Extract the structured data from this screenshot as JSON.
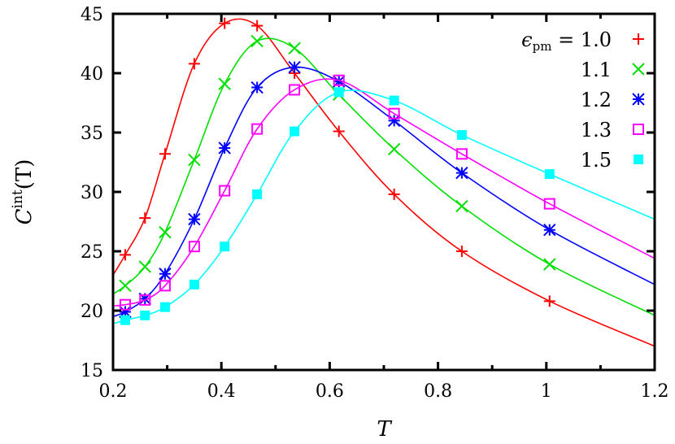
{
  "chart_data": {
    "type": "line",
    "xlabel": "T",
    "ylabel_main": "C",
    "ylabel_sup": "int",
    "ylabel_arg": "(T)",
    "xlim": [
      0.2,
      1.2
    ],
    "ylim": [
      15,
      45
    ],
    "xticks": [
      "0.2",
      "0.4",
      "0.6",
      "0.8",
      "1",
      "1.2"
    ],
    "yticks": [
      "15",
      "20",
      "25",
      "30",
      "35",
      "40",
      "45"
    ],
    "grid": false,
    "legend_position": "top-right",
    "legend_prefix": "ϵ",
    "legend_prefix_sub": "pm",
    "legend_prefix_eq": " = ",
    "x": [
      0.2225,
      0.259,
      0.296,
      0.35,
      0.406,
      0.466,
      0.535,
      0.617,
      0.719,
      0.844,
      1.006
    ],
    "series": [
      {
        "name": "1.0",
        "color": "#ff0000",
        "marker": "plus",
        "values": [
          24.7,
          27.8,
          33.2,
          40.8,
          44.2,
          44.0,
          40.0,
          35.1,
          29.8,
          25.0,
          20.8
        ],
        "fit_ends": [
          23.0,
          17.0
        ]
      },
      {
        "name": "1.1",
        "color": "#00e000",
        "marker": "cross",
        "values": [
          22.1,
          23.7,
          26.6,
          32.7,
          39.1,
          42.7,
          42.1,
          38.2,
          33.6,
          28.8,
          23.9
        ],
        "fit_ends": [
          21.4,
          19.6
        ]
      },
      {
        "name": "1.2",
        "color": "#0000ff",
        "marker": "star",
        "values": [
          19.9,
          21.0,
          23.1,
          27.7,
          33.7,
          38.8,
          40.5,
          39.3,
          36.0,
          31.6,
          26.8
        ],
        "fit_ends": [
          19.5,
          22.2
        ]
      },
      {
        "name": "1.3",
        "color": "#ff00ff",
        "marker": "open-square",
        "values": [
          20.5,
          20.9,
          22.1,
          25.4,
          30.1,
          35.3,
          38.6,
          39.4,
          36.6,
          33.2,
          29.0
        ],
        "fit_ends": [
          20.4,
          24.4
        ]
      },
      {
        "name": "1.5",
        "color": "#00ffff",
        "marker": "filled-square",
        "values": [
          19.2,
          19.6,
          20.3,
          22.2,
          25.4,
          29.8,
          35.1,
          38.4,
          37.7,
          34.8,
          31.5
        ],
        "fit_ends": [
          18.9,
          27.7
        ]
      }
    ]
  }
}
